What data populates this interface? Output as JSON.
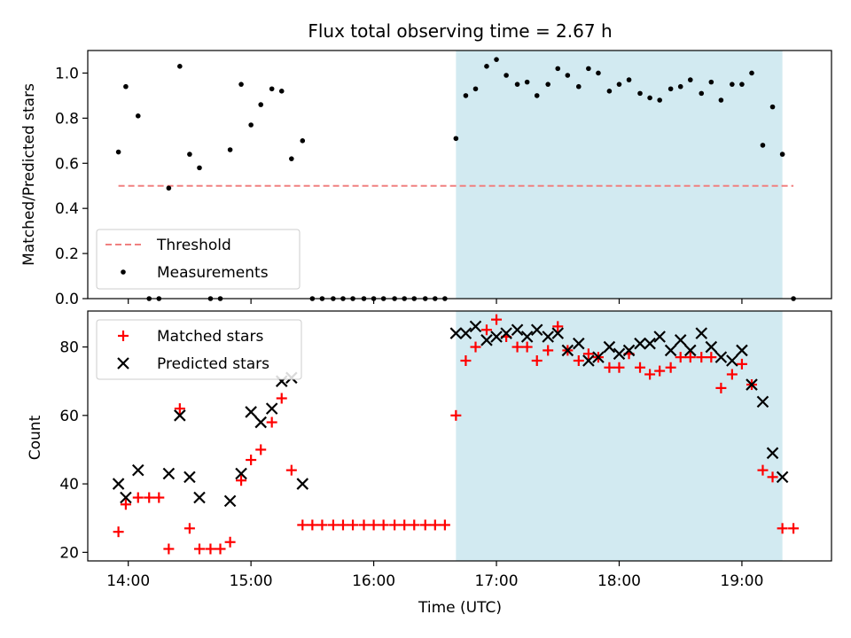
{
  "chart_data": [
    {
      "type": "scatter",
      "title": "Flux total observing time = 2.67 h",
      "xlabel": "",
      "ylabel": "Matched/Predicted stars",
      "ylim": [
        0,
        1.1
      ],
      "yticks": [
        "0.0",
        "0.2",
        "0.4",
        "0.6",
        "0.8",
        "1.0"
      ],
      "ytick_values": [
        0,
        0.2,
        0.4,
        0.6,
        0.8,
        1.0
      ],
      "xlim": [
        13.67,
        19.73
      ],
      "xtick_values": [
        14,
        15,
        16,
        17,
        18,
        19
      ],
      "shaded_x": [
        16.67,
        19.33
      ],
      "threshold": {
        "name": "Threshold",
        "value": 0.5,
        "x": [
          13.92,
          19.42
        ],
        "color": "#f08080"
      },
      "legend": {
        "position": "lower-left",
        "entries": [
          "Threshold",
          "Measurements"
        ]
      },
      "series": [
        {
          "name": "Measurements",
          "color": "#000000",
          "x": [
            13.92,
            13.98,
            14.08,
            14.17,
            14.25,
            14.33,
            14.42,
            14.5,
            14.58,
            14.67,
            14.75,
            14.83,
            14.92,
            15.0,
            15.08,
            15.17,
            15.25,
            15.33,
            15.42,
            15.5,
            15.58,
            15.67,
            15.75,
            15.83,
            15.92,
            16.0,
            16.08,
            16.17,
            16.25,
            16.33,
            16.42,
            16.5,
            16.58,
            16.67,
            16.75,
            16.83,
            16.92,
            17.0,
            17.08,
            17.17,
            17.25,
            17.33,
            17.42,
            17.5,
            17.58,
            17.67,
            17.75,
            17.83,
            17.92,
            18.0,
            18.08,
            18.17,
            18.25,
            18.33,
            18.42,
            18.5,
            18.58,
            18.67,
            18.75,
            18.83,
            18.92,
            19.0,
            19.08,
            19.17,
            19.25,
            19.33,
            19.42
          ],
          "y": [
            0.65,
            0.94,
            0.81,
            0.0,
            0.0,
            0.49,
            1.03,
            0.64,
            0.58,
            0.0,
            0.0,
            0.66,
            0.95,
            0.77,
            0.86,
            0.93,
            0.92,
            0.62,
            0.7,
            0.0,
            0.0,
            0.0,
            0.0,
            0.0,
            0.0,
            0.0,
            0.0,
            0.0,
            0.0,
            0.0,
            0.0,
            0.0,
            0.0,
            0.71,
            0.9,
            0.93,
            1.03,
            1.06,
            0.99,
            0.95,
            0.96,
            0.9,
            0.95,
            1.02,
            0.99,
            0.94,
            1.02,
            1.0,
            0.92,
            0.95,
            0.97,
            0.91,
            0.89,
            0.88,
            0.93,
            0.94,
            0.97,
            0.91,
            0.96,
            0.88,
            0.95,
            0.95,
            1.0,
            0.68,
            0.85,
            0.64,
            0.0
          ]
        }
      ]
    },
    {
      "type": "scatter",
      "title": "",
      "xlabel": "Time (UTC)",
      "ylabel": "Count",
      "ylim": [
        17.5,
        90.5
      ],
      "yticks": [
        "20",
        "40",
        "60",
        "80"
      ],
      "ytick_values": [
        20,
        40,
        60,
        80
      ],
      "xlim": [
        13.67,
        19.73
      ],
      "xticks": [
        "14:00",
        "15:00",
        "16:00",
        "17:00",
        "18:00",
        "19:00"
      ],
      "xtick_values": [
        14,
        15,
        16,
        17,
        18,
        19
      ],
      "shaded_x": [
        16.67,
        19.33
      ],
      "legend": {
        "position": "upper-left",
        "entries": [
          "Matched stars",
          "Predicted stars"
        ]
      },
      "series": [
        {
          "name": "Matched stars",
          "color": "#ff0000",
          "marker": "plus",
          "x": [
            13.92,
            13.98,
            14.08,
            14.17,
            14.25,
            14.33,
            14.42,
            14.5,
            14.58,
            14.67,
            14.75,
            14.83,
            14.92,
            15.0,
            15.08,
            15.17,
            15.25,
            15.33,
            15.42,
            15.5,
            15.58,
            15.67,
            15.75,
            15.83,
            15.92,
            16.0,
            16.08,
            16.17,
            16.25,
            16.33,
            16.42,
            16.5,
            16.58,
            16.67,
            16.75,
            16.83,
            16.92,
            17.0,
            17.08,
            17.17,
            17.25,
            17.33,
            17.42,
            17.5,
            17.58,
            17.67,
            17.75,
            17.83,
            17.92,
            18.0,
            18.08,
            18.17,
            18.25,
            18.33,
            18.42,
            18.5,
            18.58,
            18.67,
            18.75,
            18.83,
            18.92,
            19.0,
            19.08,
            19.17,
            19.25,
            19.33,
            19.42
          ],
          "y": [
            26,
            34,
            36,
            36,
            36,
            21,
            62,
            27,
            21,
            21,
            21,
            23,
            41,
            47,
            50,
            58,
            65,
            44,
            28,
            28,
            28,
            28,
            28,
            28,
            28,
            28,
            28,
            28,
            28,
            28,
            28,
            28,
            28,
            60,
            76,
            80,
            85,
            88,
            83,
            80,
            80,
            76,
            79,
            86,
            79,
            76,
            78,
            77,
            74,
            74,
            78,
            74,
            72,
            73,
            74,
            77,
            77,
            77,
            77,
            68,
            72,
            75,
            69,
            44,
            42,
            27,
            27
          ]
        },
        {
          "name": "Predicted stars",
          "color": "#000000",
          "marker": "x",
          "x": [
            13.92,
            13.98,
            14.08,
            14.33,
            14.42,
            14.5,
            14.58,
            14.83,
            14.92,
            15.0,
            15.08,
            15.17,
            15.25,
            15.33,
            15.42,
            16.67,
            16.75,
            16.83,
            16.92,
            17.0,
            17.08,
            17.17,
            17.25,
            17.33,
            17.42,
            17.5,
            17.58,
            17.67,
            17.75,
            17.83,
            17.92,
            18.0,
            18.08,
            18.17,
            18.25,
            18.33,
            18.42,
            18.5,
            18.58,
            18.67,
            18.75,
            18.83,
            18.92,
            19.0,
            19.08,
            19.17,
            19.25,
            19.33
          ],
          "y": [
            40,
            36,
            44,
            43,
            60,
            42,
            36,
            35,
            43,
            61,
            58,
            62,
            70,
            71,
            40,
            84,
            84,
            86,
            82,
            83,
            84,
            85,
            83,
            85,
            83,
            84,
            79,
            81,
            76,
            77,
            80,
            78,
            79,
            81,
            81,
            83,
            79,
            82,
            79,
            84,
            80,
            77,
            76,
            79,
            69,
            64,
            49,
            42
          ]
        }
      ]
    }
  ]
}
